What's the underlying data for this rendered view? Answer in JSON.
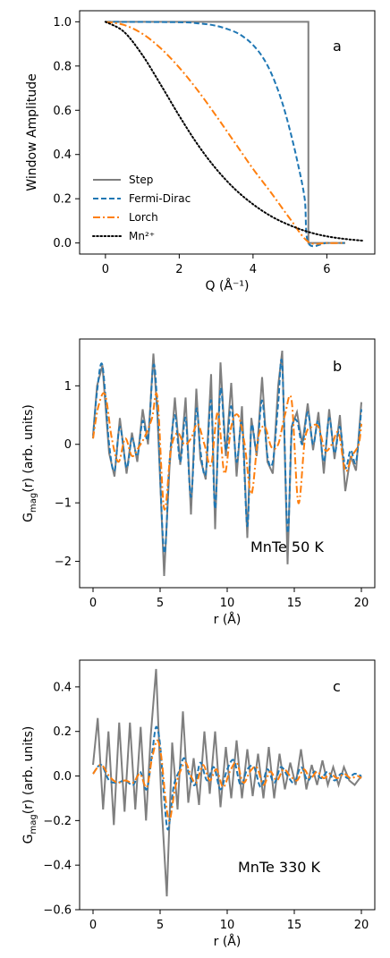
{
  "colors": {
    "step": "#7f7f7f",
    "fermi": "#1f77b4",
    "lorch": "#ff7f0e",
    "mn": "#000000"
  },
  "chart_data": [
    {
      "type": "line",
      "panel": "a",
      "xlabel": "Q (Å⁻¹)",
      "ylabel": "Window Amplitude",
      "xlim": [
        -0.7,
        7.3
      ],
      "ylim": [
        -0.05,
        1.05
      ],
      "xticks": [
        0,
        2,
        4,
        6
      ],
      "yticks": [
        0.0,
        0.2,
        0.4,
        0.6,
        0.8,
        1.0
      ],
      "grid": false,
      "legend_position": "lower-left",
      "series": [
        {
          "name": "Step",
          "style": "solid",
          "color": "#7f7f7f",
          "x": [
            0,
            5.5,
            5.5,
            6.5
          ],
          "y": [
            1.0,
            1.0,
            0.0,
            0.0
          ]
        },
        {
          "name": "Fermi-Dirac",
          "style": "dashed",
          "color": "#1f77b4",
          "x": [
            0,
            2.0,
            2.5,
            3.0,
            3.5,
            3.8,
            4.0,
            4.2,
            4.4,
            4.6,
            4.8,
            5.0,
            5.2,
            5.4,
            5.5,
            6.0,
            6.5
          ],
          "y": [
            1.0,
            0.998,
            0.993,
            0.982,
            0.955,
            0.925,
            0.895,
            0.855,
            0.8,
            0.725,
            0.63,
            0.51,
            0.37,
            0.2,
            0.0,
            0.0,
            0.0
          ]
        },
        {
          "name": "Lorch",
          "style": "dashdot",
          "color": "#ff7f0e",
          "x": [
            0,
            0.5,
            1.0,
            1.5,
            2.0,
            2.5,
            3.0,
            3.5,
            4.0,
            4.5,
            5.0,
            5.5,
            6.0,
            6.5
          ],
          "y": [
            1.0,
            0.986,
            0.946,
            0.88,
            0.793,
            0.69,
            0.575,
            0.455,
            0.335,
            0.225,
            0.11,
            0.005,
            0.0,
            0.0
          ]
        },
        {
          "name": "Mn²⁺",
          "style": "dotted",
          "color": "#000000",
          "x": [
            0,
            0.5,
            1.0,
            1.5,
            2.0,
            2.5,
            3.0,
            3.5,
            4.0,
            4.5,
            5.0,
            5.5,
            6.0,
            6.5,
            7.0
          ],
          "y": [
            1.0,
            0.955,
            0.85,
            0.715,
            0.575,
            0.445,
            0.335,
            0.245,
            0.175,
            0.12,
            0.08,
            0.05,
            0.03,
            0.018,
            0.01
          ]
        }
      ]
    },
    {
      "type": "line",
      "panel": "b",
      "annotation": "MnTe  50 K",
      "xlabel": "r (Å)",
      "ylabel": "G_mag(r) (arb. units)",
      "ylabel_main": "G",
      "ylabel_sub": "mag",
      "ylabel_rest": "(r) (arb. units)",
      "xlim": [
        -1.0,
        21.0
      ],
      "ylim": [
        -2.45,
        1.8
      ],
      "xticks": [
        0,
        5,
        10,
        15,
        20
      ],
      "yticks": [
        -2,
        -1,
        0,
        1
      ],
      "grid": false,
      "series": [
        {
          "name": "Step",
          "style": "solid",
          "color": "#7f7f7f",
          "x": [
            0,
            0.3,
            0.7,
            1.2,
            1.6,
            2.0,
            2.5,
            2.9,
            3.3,
            3.7,
            4.1,
            4.5,
            4.8,
            5.3,
            5.7,
            6.1,
            6.5,
            6.9,
            7.3,
            7.7,
            8.0,
            8.4,
            8.8,
            9.1,
            9.5,
            9.9,
            10.3,
            10.7,
            11.1,
            11.5,
            11.8,
            12.2,
            12.6,
            13.0,
            13.4,
            13.8,
            14.1,
            14.5,
            14.8,
            15.2,
            15.6,
            16.0,
            16.4,
            16.8,
            17.2,
            17.6,
            18.0,
            18.4,
            18.8,
            19.2,
            19.6,
            20.0
          ],
          "y": [
            0.15,
            1.0,
            1.35,
            -0.15,
            -0.55,
            0.45,
            -0.5,
            0.2,
            -0.3,
            0.6,
            0.0,
            1.55,
            0.5,
            -2.25,
            -0.4,
            0.8,
            -0.35,
            0.8,
            -1.2,
            0.95,
            -0.25,
            -0.6,
            1.2,
            -1.45,
            1.4,
            -0.2,
            1.05,
            -0.55,
            0.65,
            -1.6,
            0.45,
            -0.2,
            1.15,
            -0.3,
            -0.5,
            1.0,
            1.6,
            -2.05,
            0.3,
            0.55,
            0.0,
            0.7,
            -0.1,
            0.55,
            -0.5,
            0.6,
            -0.25,
            0.5,
            -0.8,
            -0.2,
            -0.45,
            0.72
          ]
        },
        {
          "name": "Fermi-Dirac",
          "style": "dashed",
          "color": "#1f77b4",
          "x": [
            0,
            0.3,
            0.7,
            1.2,
            1.6,
            2.0,
            2.5,
            2.9,
            3.3,
            3.7,
            4.1,
            4.5,
            4.8,
            5.3,
            5.7,
            6.1,
            6.5,
            6.9,
            7.3,
            7.7,
            8.0,
            8.4,
            8.8,
            9.1,
            9.5,
            9.9,
            10.3,
            10.7,
            11.1,
            11.5,
            11.8,
            12.2,
            12.6,
            13.0,
            13.4,
            13.8,
            14.1,
            14.5,
            14.8,
            15.2,
            15.6,
            16.0,
            16.4,
            16.8,
            17.2,
            17.6,
            18.0,
            18.4,
            18.8,
            19.2,
            19.6,
            20.0
          ],
          "y": [
            0.1,
            0.9,
            1.35,
            0.0,
            -0.45,
            0.3,
            -0.4,
            0.1,
            -0.2,
            0.4,
            0.1,
            1.35,
            0.6,
            -1.85,
            -0.3,
            0.5,
            -0.3,
            0.45,
            -0.9,
            0.6,
            -0.1,
            -0.5,
            0.75,
            -1.1,
            0.95,
            -0.1,
            0.65,
            -0.3,
            0.35,
            -1.4,
            0.3,
            -0.1,
            0.75,
            -0.2,
            -0.3,
            0.7,
            1.35,
            -1.5,
            0.2,
            0.4,
            0.0,
            0.55,
            0.0,
            0.4,
            -0.3,
            0.45,
            -0.15,
            0.3,
            -0.4,
            -0.1,
            -0.3,
            0.6
          ]
        },
        {
          "name": "Lorch",
          "style": "dashdot",
          "color": "#ff7f0e",
          "x": [
            0,
            0.4,
            0.9,
            1.4,
            1.9,
            2.4,
            2.9,
            3.4,
            3.9,
            4.4,
            4.8,
            5.3,
            5.8,
            6.3,
            6.8,
            7.3,
            7.8,
            8.3,
            8.8,
            9.3,
            9.8,
            10.3,
            10.8,
            11.3,
            11.8,
            12.3,
            12.8,
            13.3,
            13.8,
            14.3,
            14.8,
            15.3,
            15.8,
            16.3,
            16.8,
            17.3,
            17.8,
            18.3,
            18.8,
            19.3,
            19.8,
            20.0
          ],
          "y": [
            0.1,
            0.65,
            0.85,
            0.1,
            -0.3,
            0.1,
            -0.2,
            -0.05,
            0.15,
            0.45,
            0.8,
            -1.1,
            -0.1,
            0.2,
            0.0,
            0.1,
            0.35,
            0.0,
            -0.35,
            0.55,
            -0.5,
            0.3,
            0.5,
            0.0,
            -0.85,
            0.1,
            0.3,
            -0.05,
            0.0,
            0.5,
            0.75,
            -1.0,
            0.1,
            0.3,
            0.3,
            -0.1,
            0.0,
            0.2,
            -0.45,
            -0.2,
            0.0,
            0.35
          ]
        }
      ]
    },
    {
      "type": "line",
      "panel": "c",
      "annotation": "MnTe  330 K",
      "xlabel": "r (Å)",
      "ylabel": "G_mag(r) (arb. units)",
      "ylabel_main": "G",
      "ylabel_sub": "mag",
      "ylabel_rest": "(r) (arb. units)",
      "xlim": [
        -1.0,
        21.0
      ],
      "ylim": [
        -0.6,
        0.52
      ],
      "xticks": [
        0,
        5,
        10,
        15,
        20
      ],
      "yticks": [
        -0.6,
        -0.4,
        -0.2,
        0.0,
        0.2,
        0.4
      ],
      "grid": false,
      "series": [
        {
          "name": "Step",
          "style": "solid",
          "color": "#7f7f7f",
          "x": [
            0,
            0.35,
            0.75,
            1.15,
            1.55,
            1.95,
            2.35,
            2.75,
            3.15,
            3.55,
            3.95,
            4.3,
            4.7,
            5.1,
            5.5,
            5.9,
            6.3,
            6.7,
            7.1,
            7.5,
            7.9,
            8.3,
            8.7,
            9.1,
            9.5,
            9.9,
            10.3,
            10.7,
            11.1,
            11.5,
            11.9,
            12.3,
            12.7,
            13.1,
            13.5,
            13.9,
            14.3,
            14.7,
            15.1,
            15.5,
            15.9,
            16.3,
            16.7,
            17.1,
            17.5,
            17.9,
            18.3,
            18.7,
            19.1,
            19.5,
            20.0
          ],
          "y": [
            0.05,
            0.26,
            -0.15,
            0.2,
            -0.22,
            0.24,
            -0.16,
            0.24,
            -0.15,
            0.22,
            -0.2,
            0.18,
            0.48,
            -0.12,
            -0.54,
            0.15,
            -0.15,
            0.29,
            -0.12,
            0.08,
            -0.13,
            0.2,
            -0.08,
            0.2,
            -0.14,
            0.13,
            -0.1,
            0.16,
            -0.1,
            0.12,
            -0.09,
            0.1,
            -0.1,
            0.13,
            -0.1,
            0.1,
            -0.06,
            0.06,
            -0.04,
            0.12,
            -0.06,
            0.05,
            -0.04,
            0.07,
            -0.04,
            0.04,
            -0.04,
            0.04,
            -0.02,
            -0.04,
            0.0
          ]
        },
        {
          "name": "Fermi-Dirac",
          "style": "dashed",
          "color": "#1f77b4",
          "x": [
            0,
            0.6,
            1.2,
            1.8,
            2.4,
            3.0,
            3.5,
            4.0,
            4.4,
            4.7,
            5.0,
            5.3,
            5.6,
            6.0,
            6.4,
            6.8,
            7.2,
            7.6,
            8.0,
            8.5,
            9.0,
            9.5,
            10.0,
            10.5,
            11.0,
            11.5,
            12.0,
            12.5,
            13.0,
            13.5,
            14.0,
            14.5,
            15.0,
            15.5,
            16.0,
            16.5,
            17.0,
            17.5,
            18.0,
            18.5,
            19.0,
            19.5,
            20.0
          ],
          "y": [
            0.01,
            0.05,
            -0.02,
            -0.03,
            -0.02,
            -0.04,
            0.02,
            -0.06,
            0.1,
            0.22,
            0.14,
            -0.1,
            -0.24,
            -0.05,
            0.02,
            0.08,
            0.0,
            -0.04,
            0.06,
            -0.02,
            0.04,
            -0.06,
            0.03,
            0.07,
            -0.04,
            0.03,
            0.04,
            -0.05,
            0.03,
            -0.03,
            0.04,
            0.0,
            -0.03,
            0.04,
            -0.02,
            0.02,
            -0.01,
            0.02,
            -0.02,
            0.01,
            -0.01,
            0.01,
            0.0
          ]
        },
        {
          "name": "Lorch",
          "style": "dashdot",
          "color": "#ff7f0e",
          "x": [
            0,
            0.6,
            1.2,
            1.8,
            2.4,
            3.0,
            3.5,
            4.0,
            4.4,
            4.8,
            5.1,
            5.4,
            5.7,
            6.1,
            6.5,
            6.9,
            7.3,
            7.7,
            8.2,
            8.7,
            9.2,
            9.7,
            10.2,
            10.7,
            11.2,
            11.7,
            12.2,
            12.7,
            13.2,
            13.7,
            14.2,
            14.7,
            15.2,
            15.7,
            16.2,
            16.7,
            17.2,
            17.7,
            18.2,
            18.7,
            19.2,
            19.7,
            20.0
          ],
          "y": [
            0.01,
            0.05,
            0.0,
            -0.03,
            -0.02,
            -0.03,
            0.01,
            -0.05,
            0.08,
            0.16,
            0.08,
            -0.1,
            -0.2,
            -0.06,
            0.02,
            0.06,
            0.0,
            -0.03,
            0.05,
            -0.02,
            0.03,
            -0.05,
            0.02,
            0.06,
            -0.03,
            0.02,
            0.04,
            -0.04,
            0.02,
            -0.02,
            0.03,
            0.0,
            -0.02,
            0.03,
            -0.01,
            0.02,
            -0.01,
            0.01,
            -0.01,
            0.01,
            -0.01,
            0.0,
            -0.01
          ]
        }
      ]
    }
  ]
}
